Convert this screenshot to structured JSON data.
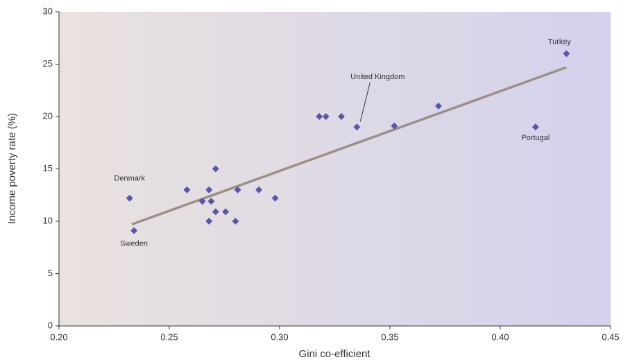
{
  "chart_data": {
    "type": "scatter",
    "x_label": "Gini co-efficient",
    "y_label": "Income poverty rate (%)",
    "x": [
      0.232,
      0.234,
      0.258,
      0.265,
      0.268,
      0.269,
      0.268,
      0.271,
      0.271,
      0.2755,
      0.28,
      0.281,
      0.2906,
      0.298,
      0.318,
      0.321,
      0.328,
      0.335,
      0.352,
      0.372,
      0.416,
      0.43
    ],
    "values": [
      12.2,
      9.1,
      13,
      11.9,
      13,
      11.9,
      10,
      15,
      10.9,
      10.9,
      10,
      13,
      13,
      12.2,
      20,
      20,
      20,
      19,
      19.1,
      21,
      19,
      26
    ],
    "labels": [
      "Denmark",
      "Sweden",
      null,
      null,
      null,
      null,
      null,
      null,
      null,
      null,
      null,
      null,
      null,
      null,
      null,
      null,
      null,
      "United Kingdom",
      null,
      null,
      "Portugal",
      "Turkey"
    ],
    "color": "#5b55a8",
    "trendline": {
      "x": [
        0.233,
        0.43
      ],
      "values": [
        9.7,
        24.7
      ],
      "color": "#9e8e86"
    },
    "xlim": [
      0.2,
      0.45
    ],
    "xticks": [
      {
        "value": 0.2,
        "label": "0.20"
      },
      0.25,
      {
        "value": 0.3,
        "label": "0.30"
      },
      0.35,
      {
        "value": 0.4,
        "label": "0.40"
      },
      0.45
    ],
    "ylim": [
      0,
      30
    ],
    "yticks": [
      0,
      5,
      10,
      15,
      20,
      25,
      30
    ]
  }
}
